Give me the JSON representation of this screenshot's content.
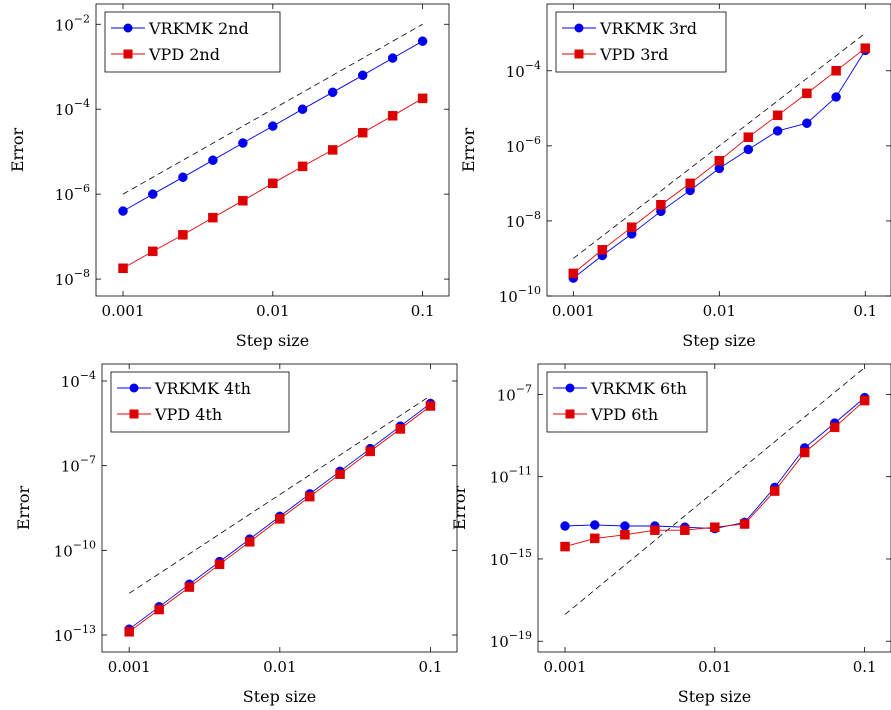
{
  "colors": {
    "blue": "#0000ee",
    "red": "#dd0000",
    "ref": "#000000"
  },
  "chart_data": [
    {
      "type": "line",
      "xlabel": "Step size",
      "ylabel": "Error",
      "xscale": "log",
      "yscale": "log",
      "xlim": [
        0.00066,
        0.15
      ],
      "ylim": [
        4e-09,
        0.03
      ],
      "xticks": [
        "0.001",
        "0.01",
        "0.1"
      ],
      "yticks_exp": [
        "-8",
        "-6",
        "-4",
        "-2"
      ],
      "legend_position": "top-left",
      "x": [
        0.001,
        0.00158,
        0.00251,
        0.00398,
        0.00631,
        0.01,
        0.0158,
        0.0251,
        0.0398,
        0.0631,
        0.1
      ],
      "series": [
        {
          "name": "VRKMK 2nd",
          "marker": "circle",
          "color": "#0000ee",
          "values": [
            4e-07,
            1e-06,
            2.5e-06,
            6.3e-06,
            1.6e-05,
            4e-05,
            0.0001,
            0.00025,
            0.00063,
            0.0016,
            0.004
          ]
        },
        {
          "name": "VPD 2nd",
          "marker": "square",
          "color": "#dd0000",
          "values": [
            1.8e-08,
            4.5e-08,
            1.1e-07,
            2.8e-07,
            7e-07,
            1.8e-06,
            4.5e-06,
            1.1e-05,
            2.8e-05,
            7e-05,
            0.00018
          ]
        }
      ],
      "reference": {
        "x": [
          0.001,
          0.1
        ],
        "y": [
          1e-06,
          0.01
        ]
      }
    },
    {
      "type": "line",
      "xlabel": "Step size",
      "ylabel": "Error",
      "xscale": "log",
      "yscale": "log",
      "xlim": [
        0.00066,
        0.15
      ],
      "ylim": [
        1e-10,
        0.006
      ],
      "xticks": [
        "0.001",
        "0.01",
        "0.1"
      ],
      "yticks_exp": [
        "-10",
        "-8",
        "-6",
        "-4"
      ],
      "legend_position": "top-left",
      "x": [
        0.001,
        0.00158,
        0.00251,
        0.00398,
        0.00631,
        0.01,
        0.0158,
        0.0251,
        0.0398,
        0.0631,
        0.1
      ],
      "series": [
        {
          "name": "VRKMK 3rd",
          "marker": "circle",
          "color": "#0000ee",
          "values": [
            3e-10,
            1.2e-09,
            4.5e-09,
            1.8e-08,
            6.5e-08,
            2.5e-07,
            8e-07,
            2.5e-06,
            4e-06,
            2e-05,
            0.00035
          ]
        },
        {
          "name": "VPD 3rd",
          "marker": "square",
          "color": "#dd0000",
          "values": [
            4e-10,
            1.7e-09,
            6.8e-09,
            2.7e-08,
            1e-07,
            4e-07,
            1.7e-06,
            6.5e-06,
            2.5e-05,
            0.0001,
            0.0004
          ]
        }
      ],
      "reference": {
        "x": [
          0.001,
          0.1
        ],
        "y": [
          1e-09,
          0.001
        ]
      }
    },
    {
      "type": "line",
      "xlabel": "Step size",
      "ylabel": "Error",
      "xscale": "log",
      "yscale": "log",
      "xlim": [
        0.00066,
        0.15
      ],
      "ylim": [
        2.5e-14,
        0.0004
      ],
      "xticks": [
        "0.001",
        "0.01",
        "0.1"
      ],
      "yticks_exp": [
        "-13",
        "-10",
        "-7",
        "-4"
      ],
      "legend_position": "top-left",
      "x": [
        0.001,
        0.00158,
        0.00251,
        0.00398,
        0.00631,
        0.01,
        0.0158,
        0.0251,
        0.0398,
        0.0631,
        0.1
      ],
      "series": [
        {
          "name": "VRKMK 4th",
          "marker": "circle",
          "color": "#0000ee",
          "values": [
            1.6e-13,
            1e-12,
            6.3e-12,
            4e-11,
            2.5e-10,
            1.6e-09,
            1e-08,
            6.3e-08,
            4e-07,
            2.5e-06,
            1.6e-05
          ]
        },
        {
          "name": "VPD 4th",
          "marker": "square",
          "color": "#dd0000",
          "values": [
            1.3e-13,
            8e-13,
            5e-12,
            3.2e-11,
            2e-10,
            1.3e-09,
            8e-09,
            5e-08,
            3.2e-07,
            2e-06,
            1.3e-05
          ]
        }
      ],
      "reference": {
        "x": [
          0.001,
          0.1
        ],
        "y": [
          3e-12,
          3e-05
        ]
      }
    },
    {
      "type": "line",
      "xlabel": "Step size",
      "ylabel": "Error",
      "xscale": "log",
      "yscale": "log",
      "xlim": [
        0.00066,
        0.15
      ],
      "ylim": [
        3e-20,
        3e-06
      ],
      "xticks": [
        "0.001",
        "0.01",
        "0.1"
      ],
      "yticks_exp": [
        "-19",
        "-15",
        "-11",
        "-7"
      ],
      "legend_position": "top-left",
      "x": [
        0.001,
        0.00158,
        0.00251,
        0.00398,
        0.00631,
        0.01,
        0.0158,
        0.0251,
        0.0398,
        0.0631,
        0.1
      ],
      "series": [
        {
          "name": "VRKMK 6th",
          "marker": "circle",
          "color": "#0000ee",
          "values": [
            4e-14,
            4.5e-14,
            4e-14,
            4e-14,
            3.5e-14,
            3e-14,
            6e-14,
            3e-12,
            2.5e-10,
            4e-09,
            7e-08
          ]
        },
        {
          "name": "VPD 6th",
          "marker": "square",
          "color": "#dd0000",
          "values": [
            4e-15,
            1e-14,
            1.5e-14,
            2.5e-14,
            2.5e-14,
            3.5e-14,
            5e-14,
            2e-12,
            1.5e-10,
            2.5e-09,
            5e-08
          ]
        }
      ],
      "reference": {
        "x": [
          0.001,
          0.1
        ],
        "y": [
          2e-18,
          2e-06
        ]
      }
    }
  ]
}
